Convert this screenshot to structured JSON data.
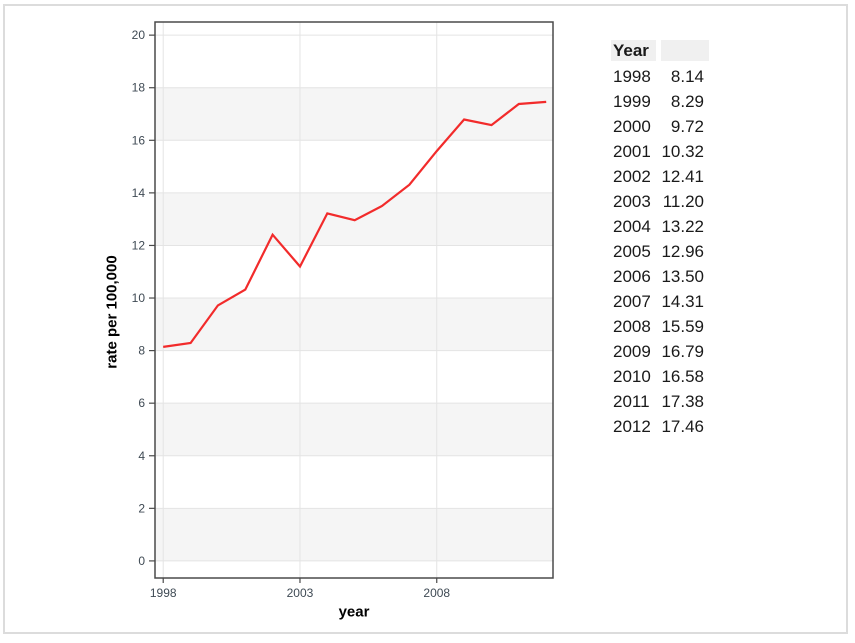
{
  "page": {
    "background": "#ffffff",
    "frame_border_color": "#dcdcdc"
  },
  "chart_data": {
    "type": "line",
    "title": "",
    "xlabel": "year",
    "ylabel": "rate per 100,000",
    "x": [
      1998,
      1999,
      2000,
      2001,
      2002,
      2003,
      2004,
      2005,
      2006,
      2007,
      2008,
      2009,
      2010,
      2011,
      2012
    ],
    "series": [
      {
        "name": "rate per 100,000",
        "color": "#f22b2b",
        "values": [
          8.14,
          8.29,
          9.72,
          10.32,
          12.41,
          11.2,
          13.22,
          12.96,
          13.5,
          14.31,
          15.59,
          16.79,
          16.58,
          17.38,
          17.46
        ]
      }
    ],
    "xlim": [
      1997.7,
      2012.25
    ],
    "ylim": [
      -0.65,
      20.5
    ],
    "x_ticks": [
      1998,
      2003,
      2008
    ],
    "y_ticks": [
      0,
      2,
      4,
      6,
      8,
      10,
      12,
      14,
      16,
      18,
      20
    ],
    "grid": true,
    "legend": "none",
    "shaded_bands": [
      [
        0,
        2
      ],
      [
        4,
        6
      ],
      [
        8,
        10
      ],
      [
        12,
        14
      ],
      [
        16,
        18
      ]
    ],
    "colors": {
      "plot_background": "#ffffff",
      "band_fill": "#f5f5f5",
      "gridline": "#e4e4e4",
      "plot_border": "#4a4a4a",
      "tick_mark": "#4a4a4a",
      "tick_label": "#3f4a54",
      "axis_title": "#000000"
    }
  },
  "table": {
    "header": [
      "Year",
      ""
    ],
    "header_bg": "#f0f0f0",
    "rows": [
      [
        "1998",
        "8.14"
      ],
      [
        "1999",
        "8.29"
      ],
      [
        "2000",
        "9.72"
      ],
      [
        "2001",
        "10.32"
      ],
      [
        "2002",
        "12.41"
      ],
      [
        "2003",
        "11.20"
      ],
      [
        "2004",
        "13.22"
      ],
      [
        "2005",
        "12.96"
      ],
      [
        "2006",
        "13.50"
      ],
      [
        "2007",
        "14.31"
      ],
      [
        "2008",
        "15.59"
      ],
      [
        "2009",
        "16.79"
      ],
      [
        "2010",
        "16.58"
      ],
      [
        "2011",
        "17.38"
      ],
      [
        "2012",
        "17.46"
      ]
    ]
  }
}
